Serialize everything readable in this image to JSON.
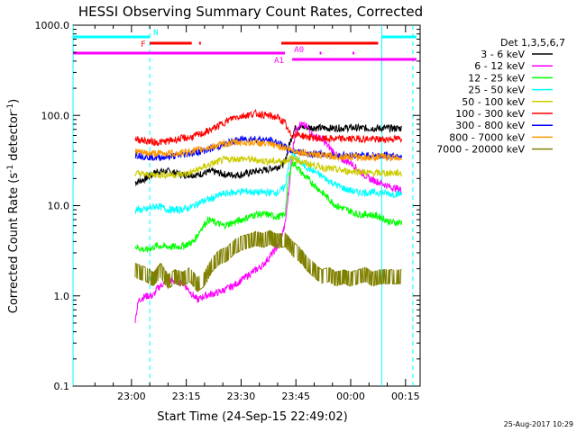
{
  "chart_data": {
    "type": "line",
    "title": "HESSI Observing Summary Count Rates, Corrected",
    "xlabel": "Start Time (24-Sep-15 22:49:02)",
    "ylabel_main": "Corrected Count Rate (s",
    "ylabel_sup": "-1",
    "ylabel_mid": " detector",
    "ylabel_end": ")",
    "yscale": "log",
    "ylim": [
      0.1,
      1000
    ],
    "xlim_minutes": [
      -16,
      79
    ],
    "x_tick_labels": [
      "23:00",
      "23:15",
      "23:30",
      "23:45",
      "00:00",
      "00:15"
    ],
    "y_tick_labels": [
      "0.1",
      "1.0",
      "10.0",
      "100.0",
      "1000.0"
    ],
    "legend_title": "Det 1,3,5,6,7",
    "legend_placement": "right",
    "footer_date": "25-Aug-2017 10:29",
    "vertical_lines": {
      "solid_minutes": [
        -16,
        68.5
      ],
      "dashed_minutes": [
        5,
        77
      ]
    },
    "flag_bars": [
      {
        "label": "N",
        "color": "#00ffff",
        "level": 1,
        "segments": [
          [
            -16,
            5
          ],
          [
            68.5,
            78
          ]
        ]
      },
      {
        "label": "F",
        "color": "#ff0000",
        "level": 2,
        "segments": [
          [
            5,
            16.5
          ],
          [
            18.5,
            19
          ],
          [
            41,
            67.5
          ]
        ]
      },
      {
        "label": "A0",
        "color": "#ff00ff",
        "level": 3,
        "segments": [
          [
            -16,
            42
          ],
          [
            51.5,
            52
          ],
          [
            60.5,
            61
          ]
        ]
      },
      {
        "label": "A1",
        "color": "#ff00ff",
        "level": 4,
        "segments": [
          [
            44,
            78
          ]
        ]
      }
    ],
    "series": [
      {
        "name": "3 - 6 keV",
        "color": "#000000",
        "points": [
          [
            1,
            18
          ],
          [
            4,
            20
          ],
          [
            7,
            24
          ],
          [
            10,
            24
          ],
          [
            14,
            22
          ],
          [
            18,
            22
          ],
          [
            22,
            24
          ],
          [
            26,
            22
          ],
          [
            30,
            22
          ],
          [
            34,
            24
          ],
          [
            37,
            25
          ],
          [
            40,
            27
          ],
          [
            42,
            30
          ],
          [
            43,
            45
          ],
          [
            44,
            60
          ],
          [
            45,
            75
          ],
          [
            50,
            73
          ],
          [
            55,
            72
          ],
          [
            60,
            73
          ],
          [
            65,
            72
          ],
          [
            70,
            72
          ],
          [
            74,
            72
          ]
        ]
      },
      {
        "name": "6 - 12 keV",
        "color": "#ff00ff",
        "points": [
          [
            1,
            0.55
          ],
          [
            2,
            0.9
          ],
          [
            4,
            1.0
          ],
          [
            6,
            1.0
          ],
          [
            7,
            1.2
          ],
          [
            10,
            1.5
          ],
          [
            14,
            1.4
          ],
          [
            17,
            1.0
          ],
          [
            18,
            0.9
          ],
          [
            20,
            1.0
          ],
          [
            24,
            1.1
          ],
          [
            28,
            1.3
          ],
          [
            32,
            1.7
          ],
          [
            36,
            2.2
          ],
          [
            40,
            3.5
          ],
          [
            42,
            6
          ],
          [
            43,
            14
          ],
          [
            44,
            40
          ],
          [
            45,
            70
          ],
          [
            46,
            80
          ],
          [
            48,
            75
          ],
          [
            50,
            58
          ],
          [
            52,
            55
          ],
          [
            54,
            45
          ],
          [
            57,
            33
          ],
          [
            60,
            30
          ],
          [
            62,
            25
          ],
          [
            65,
            20
          ],
          [
            68,
            18
          ],
          [
            71,
            16
          ],
          [
            74,
            15
          ]
        ]
      },
      {
        "name": "12 - 25 keV",
        "color": "#00ff00",
        "points": [
          [
            1,
            3.5
          ],
          [
            4,
            3.2
          ],
          [
            7,
            3.6
          ],
          [
            10,
            3.5
          ],
          [
            13,
            3.5
          ],
          [
            15,
            3.7
          ],
          [
            17,
            4.0
          ],
          [
            19,
            5.5
          ],
          [
            21,
            7
          ],
          [
            23,
            6.5
          ],
          [
            25,
            6.0
          ],
          [
            28,
            6.5
          ],
          [
            31,
            7.2
          ],
          [
            34,
            8
          ],
          [
            37,
            8
          ],
          [
            40,
            7.5
          ],
          [
            42,
            8
          ],
          [
            43,
            20
          ],
          [
            44,
            30
          ],
          [
            45,
            28
          ],
          [
            47,
            22
          ],
          [
            50,
            17
          ],
          [
            53,
            13
          ],
          [
            56,
            10
          ],
          [
            59,
            9
          ],
          [
            62,
            8
          ],
          [
            65,
            8
          ],
          [
            68,
            7.5
          ],
          [
            71,
            6.5
          ],
          [
            74,
            6.5
          ]
        ]
      },
      {
        "name": "25 - 50 keV",
        "color": "#00ffff",
        "points": [
          [
            1,
            9
          ],
          [
            4,
            9
          ],
          [
            7,
            10
          ],
          [
            10,
            9
          ],
          [
            13,
            9
          ],
          [
            16,
            9.5
          ],
          [
            19,
            11
          ],
          [
            22,
            12
          ],
          [
            25,
            13.5
          ],
          [
            28,
            14
          ],
          [
            31,
            14.5
          ],
          [
            34,
            14
          ],
          [
            37,
            14
          ],
          [
            40,
            14
          ],
          [
            42,
            16
          ],
          [
            43,
            28
          ],
          [
            44,
            38
          ],
          [
            45,
            34
          ],
          [
            47,
            28
          ],
          [
            50,
            24
          ],
          [
            53,
            20
          ],
          [
            56,
            17
          ],
          [
            59,
            15
          ],
          [
            62,
            14
          ],
          [
            65,
            14
          ],
          [
            68,
            14
          ],
          [
            71,
            13.5
          ],
          [
            74,
            13.5
          ]
        ]
      },
      {
        "name": "50 - 100 keV",
        "color": "#cccc00",
        "points": [
          [
            1,
            23
          ],
          [
            4,
            22
          ],
          [
            7,
            22
          ],
          [
            10,
            22
          ],
          [
            13,
            22
          ],
          [
            16,
            23
          ],
          [
            19,
            26
          ],
          [
            22,
            29
          ],
          [
            25,
            32
          ],
          [
            28,
            33
          ],
          [
            31,
            33
          ],
          [
            34,
            32
          ],
          [
            37,
            31
          ],
          [
            40,
            31
          ],
          [
            42,
            31
          ],
          [
            43,
            33
          ],
          [
            45,
            33
          ],
          [
            47,
            30
          ],
          [
            50,
            28
          ],
          [
            53,
            26
          ],
          [
            56,
            25
          ],
          [
            59,
            24
          ],
          [
            62,
            24
          ],
          [
            65,
            23
          ],
          [
            68,
            23
          ],
          [
            71,
            23
          ],
          [
            74,
            23
          ]
        ]
      },
      {
        "name": "100 - 300 keV",
        "color": "#ff0000",
        "points": [
          [
            1,
            55
          ],
          [
            4,
            52
          ],
          [
            7,
            50
          ],
          [
            10,
            52
          ],
          [
            13,
            55
          ],
          [
            16,
            57
          ],
          [
            19,
            62
          ],
          [
            22,
            70
          ],
          [
            25,
            82
          ],
          [
            28,
            95
          ],
          [
            31,
            100
          ],
          [
            34,
            105
          ],
          [
            37,
            100
          ],
          [
            40,
            95
          ],
          [
            42,
            82
          ],
          [
            43,
            65
          ],
          [
            44,
            60
          ],
          [
            45,
            62
          ],
          [
            48,
            58
          ],
          [
            52,
            55
          ],
          [
            56,
            55
          ],
          [
            60,
            55
          ],
          [
            64,
            55
          ],
          [
            68,
            54
          ],
          [
            71,
            55
          ],
          [
            74,
            55
          ]
        ]
      },
      {
        "name": "300 - 800 keV",
        "color": "#0000ff",
        "points": [
          [
            1,
            37
          ],
          [
            4,
            35
          ],
          [
            7,
            34
          ],
          [
            10,
            35
          ],
          [
            13,
            36
          ],
          [
            16,
            38
          ],
          [
            19,
            40
          ],
          [
            22,
            43
          ],
          [
            25,
            47
          ],
          [
            28,
            52
          ],
          [
            31,
            55
          ],
          [
            34,
            55
          ],
          [
            37,
            53
          ],
          [
            40,
            50
          ],
          [
            42,
            45
          ],
          [
            43,
            41
          ],
          [
            45,
            40
          ],
          [
            48,
            38
          ],
          [
            52,
            37
          ],
          [
            56,
            36
          ],
          [
            60,
            36
          ],
          [
            64,
            36
          ],
          [
            68,
            36
          ],
          [
            71,
            36
          ],
          [
            74,
            36
          ]
        ]
      },
      {
        "name": "800 - 7000 keV",
        "color": "#ff9900",
        "points": [
          [
            1,
            40
          ],
          [
            4,
            38
          ],
          [
            7,
            38
          ],
          [
            10,
            38
          ],
          [
            13,
            38
          ],
          [
            16,
            40
          ],
          [
            19,
            42
          ],
          [
            22,
            45
          ],
          [
            25,
            48
          ],
          [
            28,
            50
          ],
          [
            31,
            50
          ],
          [
            34,
            50
          ],
          [
            37,
            48
          ],
          [
            40,
            46
          ],
          [
            42,
            44
          ],
          [
            43,
            42
          ],
          [
            45,
            40
          ],
          [
            48,
            38
          ],
          [
            52,
            36
          ],
          [
            56,
            35
          ],
          [
            60,
            35
          ],
          [
            64,
            34
          ],
          [
            68,
            35
          ],
          [
            71,
            34
          ],
          [
            74,
            34
          ]
        ]
      },
      {
        "name": "7000 - 20000 keV",
        "color": "#808000",
        "points": [
          [
            1,
            2.0
          ],
          [
            4,
            1.8
          ],
          [
            6,
            1.6
          ],
          [
            8,
            2.0
          ],
          [
            10,
            1.5
          ],
          [
            12,
            1.7
          ],
          [
            14,
            1.6
          ],
          [
            16,
            1.8
          ],
          [
            18,
            1.4
          ],
          [
            20,
            1.6
          ],
          [
            22,
            2.3
          ],
          [
            24,
            2.8
          ],
          [
            26,
            3.0
          ],
          [
            28,
            3.6
          ],
          [
            30,
            4.0
          ],
          [
            32,
            4.2
          ],
          [
            34,
            4.5
          ],
          [
            36,
            4.3
          ],
          [
            38,
            4.6
          ],
          [
            40,
            4.2
          ],
          [
            42,
            4.4
          ],
          [
            44,
            3.5
          ],
          [
            46,
            3.0
          ],
          [
            48,
            2.4
          ],
          [
            50,
            2.0
          ],
          [
            52,
            1.7
          ],
          [
            54,
            1.8
          ],
          [
            56,
            1.6
          ],
          [
            58,
            1.7
          ],
          [
            60,
            1.6
          ],
          [
            62,
            1.7
          ],
          [
            64,
            1.8
          ],
          [
            66,
            1.6
          ],
          [
            68,
            1.7
          ],
          [
            71,
            1.7
          ],
          [
            74,
            1.7
          ]
        ]
      }
    ]
  }
}
